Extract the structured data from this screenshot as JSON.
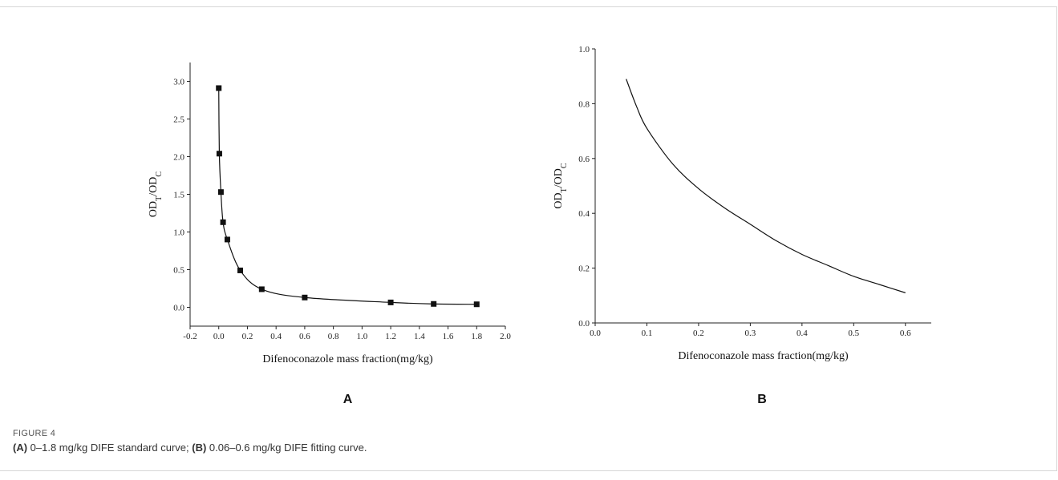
{
  "figure": {
    "label": "FIGURE 4",
    "caption": [
      {
        "bold": "(A)",
        "text": " 0–1.8 mg/kg DIFE standard curve; "
      },
      {
        "bold": "(B)",
        "text": " 0.06–0.6 mg/kg DIFE fitting curve."
      }
    ]
  },
  "chart_data": [
    {
      "type": "line",
      "panel": "A",
      "markers": "square",
      "xlabel": "Difenoconazole mass fraction(mg/kg)",
      "ylabel": "OD_T/OD_C",
      "xlim": [
        -0.2,
        2.0
      ],
      "ylim": [
        -0.25,
        3.25
      ],
      "xticks": [
        -0.2,
        0.0,
        0.2,
        0.4,
        0.6,
        0.8,
        1.0,
        1.2,
        1.4,
        1.6,
        1.8,
        2.0
      ],
      "yticks": [
        0.0,
        0.5,
        1.0,
        1.5,
        2.0,
        2.5,
        3.0
      ],
      "x_tick_labels": [
        "-0.2",
        "0.0",
        "0.2",
        "0.4",
        "0.6",
        "0.8",
        "1.0",
        "1.2",
        "1.4",
        "1.6",
        "1.8",
        "2.0"
      ],
      "y_tick_labels": [
        "0.0",
        "0.5",
        "1.0",
        "1.5",
        "2.0",
        "2.5",
        "3.0"
      ],
      "points": {
        "x": [
          0.0,
          0.004,
          0.015,
          0.03,
          0.06,
          0.15,
          0.3,
          0.6,
          1.2,
          1.5,
          1.8
        ],
        "y": [
          2.91,
          2.04,
          1.53,
          1.13,
          0.9,
          0.49,
          0.24,
          0.13,
          0.065,
          0.045,
          0.04
        ]
      },
      "grid": false
    },
    {
      "type": "line",
      "panel": "B",
      "markers": "none",
      "xlabel": "Difenoconazole mass fraction(mg/kg)",
      "ylabel": "OD_T/OD_C",
      "xlim": [
        0.0,
        0.65
      ],
      "ylim": [
        0.0,
        1.0
      ],
      "xticks": [
        0.0,
        0.1,
        0.2,
        0.3,
        0.4,
        0.5,
        0.6
      ],
      "yticks": [
        0.0,
        0.2,
        0.4,
        0.6,
        0.8,
        1.0
      ],
      "x_tick_labels": [
        "0.0",
        "0.1",
        "0.2",
        "0.3",
        "0.4",
        "0.5",
        "0.6"
      ],
      "y_tick_labels": [
        "0.0",
        "0.2",
        "0.4",
        "0.6",
        "0.8",
        "1.0"
      ],
      "curve": {
        "x": [
          0.06,
          0.08,
          0.1,
          0.15,
          0.2,
          0.25,
          0.3,
          0.35,
          0.4,
          0.45,
          0.5,
          0.55,
          0.6
        ],
        "y": [
          0.89,
          0.79,
          0.71,
          0.58,
          0.49,
          0.42,
          0.36,
          0.3,
          0.25,
          0.21,
          0.17,
          0.14,
          0.11
        ]
      },
      "grid": false
    }
  ]
}
